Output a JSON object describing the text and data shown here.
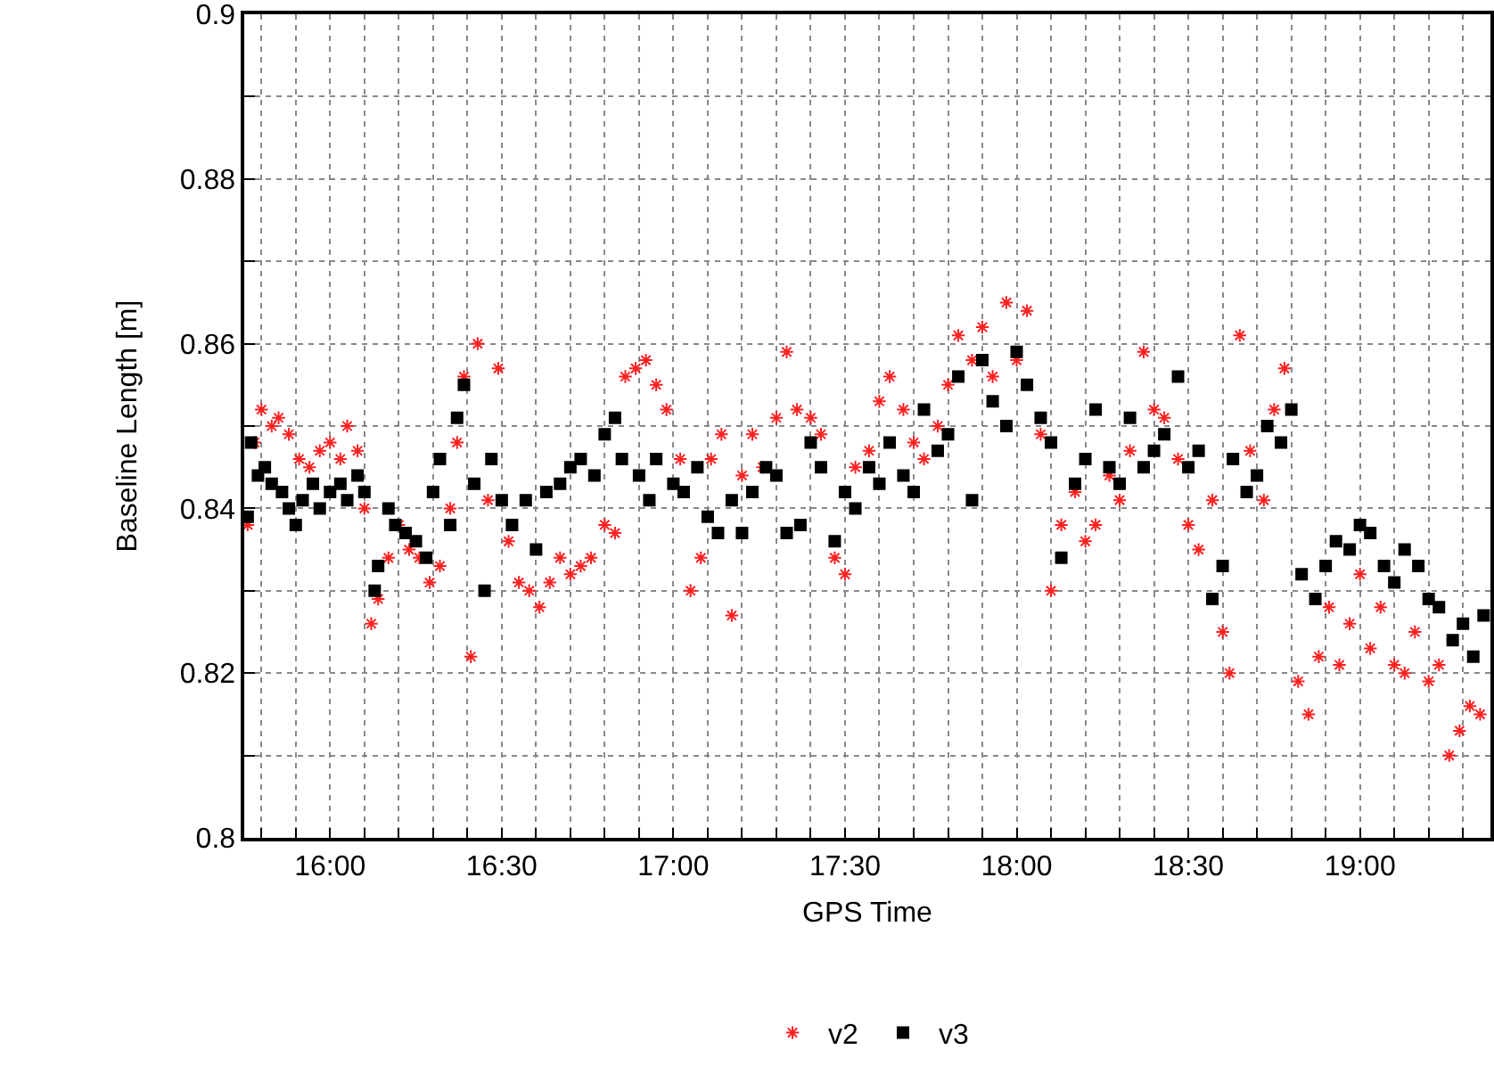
{
  "chart_data": {
    "type": "scatter",
    "xlabel": "GPS Time",
    "ylabel": "Baseline Length [m]",
    "xlim": [
      15.75,
      19.38
    ],
    "ylim": [
      0.8,
      0.9
    ],
    "xticks": [
      {
        "value": 15.8,
        "label": null
      },
      {
        "value": 15.9,
        "label": null
      },
      {
        "value": 16,
        "label": "16:00"
      },
      {
        "value": 16.1,
        "label": null
      },
      {
        "value": 16.2,
        "label": null
      },
      {
        "value": 16.3,
        "label": null
      },
      {
        "value": 16.4,
        "label": null
      },
      {
        "value": 16.5,
        "label": "16:30"
      },
      {
        "value": 16.6,
        "label": null
      },
      {
        "value": 16.7,
        "label": null
      },
      {
        "value": 16.8,
        "label": null
      },
      {
        "value": 16.9,
        "label": null
      },
      {
        "value": 17,
        "label": "17:00"
      },
      {
        "value": 17.1,
        "label": null
      },
      {
        "value": 17.2,
        "label": null
      },
      {
        "value": 17.3,
        "label": null
      },
      {
        "value": 17.4,
        "label": null
      },
      {
        "value": 17.5,
        "label": "17:30"
      },
      {
        "value": 17.6,
        "label": null
      },
      {
        "value": 17.7,
        "label": null
      },
      {
        "value": 17.8,
        "label": null
      },
      {
        "value": 17.9,
        "label": null
      },
      {
        "value": 18,
        "label": "18:00"
      },
      {
        "value": 18.1,
        "label": null
      },
      {
        "value": 18.2,
        "label": null
      },
      {
        "value": 18.3,
        "label": null
      },
      {
        "value": 18.4,
        "label": null
      },
      {
        "value": 18.5,
        "label": "18:30"
      },
      {
        "value": 18.6,
        "label": null
      },
      {
        "value": 18.7,
        "label": null
      },
      {
        "value": 18.8,
        "label": null
      },
      {
        "value": 18.9,
        "label": null
      },
      {
        "value": 19,
        "label": "19:00"
      },
      {
        "value": 19.1,
        "label": null
      },
      {
        "value": 19.2,
        "label": null
      },
      {
        "value": 19.3,
        "label": null
      }
    ],
    "yticks": [
      0.8,
      {
        "value": 0.81,
        "label": null
      },
      0.82,
      {
        "value": 0.83,
        "label": null
      },
      0.84,
      {
        "value": 0.85,
        "label": null
      },
      0.86,
      {
        "value": 0.87,
        "label": null
      },
      0.88,
      {
        "value": 0.89,
        "label": null
      },
      0.9
    ],
    "grid": true,
    "legend": "bottom",
    "series": [
      {
        "name": "v2",
        "color": "#ff2020",
        "marker": "cross",
        "x": [
          15.76,
          15.78,
          15.8,
          15.83,
          15.85,
          15.88,
          15.91,
          15.94,
          15.97,
          16.0,
          16.03,
          16.05,
          16.08,
          16.1,
          16.12,
          16.14,
          16.17,
          16.2,
          16.23,
          16.26,
          16.29,
          16.32,
          16.35,
          16.37,
          16.39,
          16.41,
          16.43,
          16.46,
          16.49,
          16.52,
          16.55,
          16.58,
          16.61,
          16.64,
          16.67,
          16.7,
          16.73,
          16.76,
          16.8,
          16.83,
          16.86,
          16.89,
          16.92,
          16.95,
          16.98,
          17.02,
          17.05,
          17.08,
          17.11,
          17.14,
          17.17,
          17.2,
          17.23,
          17.26,
          17.3,
          17.33,
          17.36,
          17.4,
          17.43,
          17.47,
          17.5,
          17.53,
          17.57,
          17.6,
          17.63,
          17.67,
          17.7,
          17.73,
          17.77,
          17.8,
          17.83,
          17.87,
          17.9,
          17.93,
          17.97,
          18.0,
          18.03,
          18.07,
          18.1,
          18.13,
          18.17,
          18.2,
          18.23,
          18.27,
          18.3,
          18.33,
          18.37,
          18.4,
          18.43,
          18.47,
          18.5,
          18.53,
          18.57,
          18.6,
          18.62,
          18.65,
          18.68,
          18.72,
          18.75,
          18.78,
          18.82,
          18.85,
          18.88,
          18.91,
          18.94,
          18.97,
          19.0,
          19.03,
          19.06,
          19.1,
          19.13,
          19.16,
          19.2,
          19.23,
          19.26,
          19.29,
          19.32,
          19.35
        ],
        "values": [
          0.838,
          0.848,
          0.852,
          0.85,
          0.851,
          0.849,
          0.846,
          0.845,
          0.847,
          0.848,
          0.846,
          0.85,
          0.847,
          0.84,
          0.826,
          0.829,
          0.834,
          0.838,
          0.835,
          0.834,
          0.831,
          0.833,
          0.84,
          0.848,
          0.856,
          0.822,
          0.86,
          0.841,
          0.857,
          0.836,
          0.831,
          0.83,
          0.828,
          0.831,
          0.834,
          0.832,
          0.833,
          0.834,
          0.838,
          0.837,
          0.856,
          0.857,
          0.858,
          0.855,
          0.852,
          0.846,
          0.83,
          0.834,
          0.846,
          0.849,
          0.827,
          0.844,
          0.849,
          0.845,
          0.851,
          0.859,
          0.852,
          0.851,
          0.849,
          0.834,
          0.832,
          0.845,
          0.847,
          0.853,
          0.856,
          0.852,
          0.848,
          0.846,
          0.85,
          0.855,
          0.861,
          0.858,
          0.862,
          0.856,
          0.865,
          0.858,
          0.864,
          0.849,
          0.83,
          0.838,
          0.842,
          0.836,
          0.838,
          0.844,
          0.841,
          0.847,
          0.859,
          0.852,
          0.851,
          0.846,
          0.838,
          0.835,
          0.841,
          0.825,
          0.82,
          0.861,
          0.847,
          0.841,
          0.852,
          0.857,
          0.819,
          0.815,
          0.822,
          0.828,
          0.821,
          0.826,
          0.832,
          0.823,
          0.828,
          0.821,
          0.82,
          0.825,
          0.819,
          0.821,
          0.81,
          0.813,
          0.816,
          0.815
        ]
      },
      {
        "name": "v3",
        "color": "#000000",
        "marker": "square",
        "x": [
          15.76,
          15.77,
          15.79,
          15.81,
          15.83,
          15.86,
          15.88,
          15.9,
          15.92,
          15.95,
          15.97,
          16.0,
          16.03,
          16.05,
          16.08,
          16.1,
          16.13,
          16.14,
          16.17,
          16.19,
          16.22,
          16.25,
          16.28,
          16.3,
          16.32,
          16.35,
          16.37,
          16.39,
          16.42,
          16.45,
          16.47,
          16.5,
          16.53,
          16.57,
          16.6,
          16.63,
          16.67,
          16.7,
          16.73,
          16.77,
          16.8,
          16.83,
          16.85,
          16.9,
          16.93,
          16.95,
          17.0,
          17.03,
          17.07,
          17.1,
          17.13,
          17.17,
          17.2,
          17.23,
          17.27,
          17.3,
          17.33,
          17.37,
          17.4,
          17.43,
          17.47,
          17.5,
          17.53,
          17.57,
          17.6,
          17.63,
          17.67,
          17.7,
          17.73,
          17.77,
          17.8,
          17.83,
          17.87,
          17.9,
          17.93,
          17.97,
          18.0,
          18.03,
          18.07,
          18.1,
          18.13,
          18.17,
          18.2,
          18.23,
          18.27,
          18.3,
          18.33,
          18.37,
          18.4,
          18.43,
          18.47,
          18.5,
          18.53,
          18.57,
          18.6,
          18.63,
          18.67,
          18.7,
          18.73,
          18.77,
          18.8,
          18.83,
          18.87,
          18.9,
          18.93,
          18.97,
          19.0,
          19.03,
          19.07,
          19.1,
          19.13,
          19.17,
          19.2,
          19.23,
          19.27,
          19.3,
          19.33,
          19.36
        ],
        "values": [
          0.839,
          0.848,
          0.844,
          0.845,
          0.843,
          0.842,
          0.84,
          0.838,
          0.841,
          0.843,
          0.84,
          0.842,
          0.843,
          0.841,
          0.844,
          0.842,
          0.83,
          0.833,
          0.84,
          0.838,
          0.837,
          0.836,
          0.834,
          0.842,
          0.846,
          0.838,
          0.851,
          0.855,
          0.843,
          0.83,
          0.846,
          0.841,
          0.838,
          0.841,
          0.835,
          0.842,
          0.843,
          0.845,
          0.846,
          0.844,
          0.849,
          0.851,
          0.846,
          0.844,
          0.841,
          0.846,
          0.843,
          0.842,
          0.845,
          0.839,
          0.837,
          0.841,
          0.837,
          0.842,
          0.845,
          0.844,
          0.837,
          0.838,
          0.848,
          0.845,
          0.836,
          0.842,
          0.84,
          0.845,
          0.843,
          0.848,
          0.844,
          0.842,
          0.852,
          0.847,
          0.849,
          0.856,
          0.841,
          0.858,
          0.853,
          0.85,
          0.859,
          0.855,
          0.851,
          0.848,
          0.834,
          0.843,
          0.846,
          0.852,
          0.845,
          0.843,
          0.851,
          0.845,
          0.847,
          0.849,
          0.856,
          0.845,
          0.847,
          0.829,
          0.833,
          0.846,
          0.842,
          0.844,
          0.85,
          0.848,
          0.852,
          0.832,
          0.829,
          0.833,
          0.836,
          0.835,
          0.838,
          0.837,
          0.833,
          0.831,
          0.835,
          0.833,
          0.829,
          0.828,
          0.824,
          0.826,
          0.822,
          0.827
        ]
      }
    ]
  }
}
